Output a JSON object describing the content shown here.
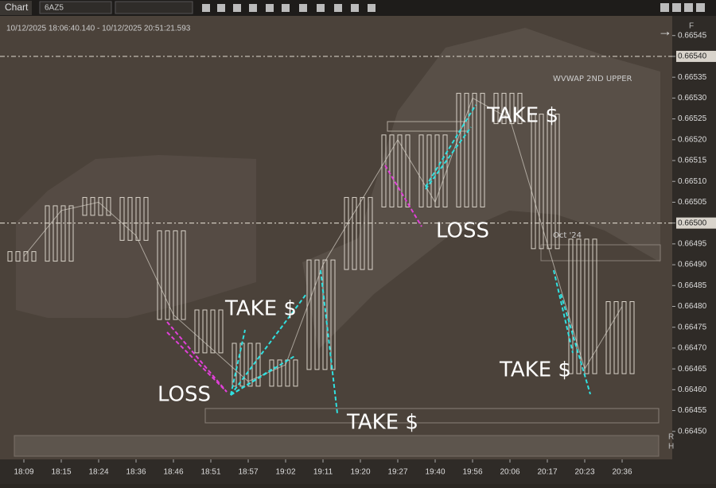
{
  "window": {
    "tab": "Chart",
    "instrument": "6AZ5"
  },
  "chart_data": {
    "type": "candlestick",
    "subtitle": "10/12/2025 18:06:40.140 - 10/12/2025 20:51:21.593",
    "categories": [
      "18:09",
      "18:15",
      "18:24",
      "18:36",
      "18:46",
      "18:51",
      "18:57",
      "19:02",
      "19:11",
      "19:20",
      "19:27",
      "19:40",
      "19:56",
      "20:06",
      "20:17",
      "20:23",
      "20:36"
    ],
    "series": [
      {
        "name": "6AZ5",
        "color": "#d8d2c8",
        "values": [
          0.66492,
          0.66503,
          0.66505,
          0.66497,
          0.66478,
          0.6647,
          0.66462,
          0.66466,
          0.6649,
          0.66505,
          0.6652,
          0.66505,
          0.6653,
          0.66525,
          0.66495,
          0.66465,
          0.6648
        ]
      }
    ],
    "ylim": [
      0.66445,
      0.66548
    ],
    "yticks": [
      {
        "value": 0.6645,
        "label": "0.66450"
      },
      0.66455,
      {
        "value": 0.6646,
        "label": "0.66460"
      },
      0.66465,
      {
        "value": 0.6647,
        "label": "0.66470"
      },
      0.66475,
      {
        "value": 0.6648,
        "label": "0.66480"
      },
      0.66485,
      {
        "value": 0.6649,
        "label": "0.66490"
      },
      0.66495,
      {
        "value": 0.665,
        "label": "0.66500"
      },
      0.66505,
      {
        "value": 0.6651,
        "label": "0.66510"
      },
      0.66515,
      {
        "value": 0.6652,
        "label": "0.66520"
      },
      0.66525,
      {
        "value": 0.6653,
        "label": "0.66530"
      },
      0.66535,
      {
        "value": 0.6654,
        "label": "0.66540"
      },
      0.66545
    ],
    "annotations": [
      "WVWAP 2ND UPPER",
      "Oct '24",
      "TAKE $",
      "LOSS",
      "TAKE $",
      "TAKE $",
      "LOSS",
      "TAKE $"
    ],
    "axis_marks": [
      "F",
      "R",
      "H"
    ]
  }
}
